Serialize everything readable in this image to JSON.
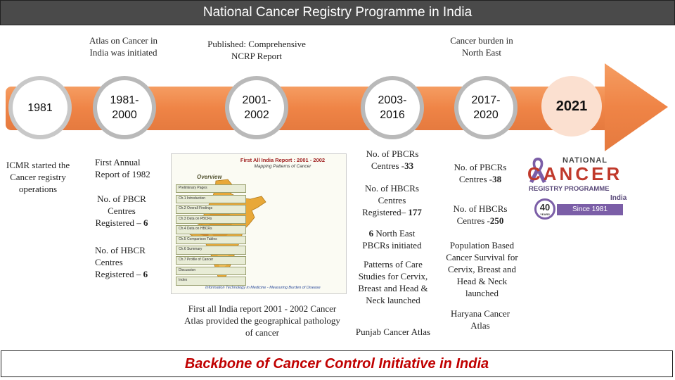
{
  "title": "National Cancer Registry Programme in India",
  "footer": "Backbone of Cancer Control Initiative in India",
  "milestones": [
    {
      "year": "1981",
      "bottom": "ICMR started the Cancer registry operations"
    },
    {
      "year": "1981-\n2000",
      "top": "Atlas on Cancer in India was initiated",
      "bottom1": "First Annual Report of 1982",
      "bottom2": "No. of PBCR Centres Registered",
      "bottom2_value": "6",
      "bottom3": "No. of HBCR Centres Registered",
      "bottom3_value": "6"
    },
    {
      "year": "2001-\n2002",
      "top": "Published: Comprehensive NCRP Report",
      "bottom": "First all India report 2001 - 2002 Cancer Atlas provided the geographical pathology of cancer"
    },
    {
      "year": "2003-\n2016",
      "b1": "No. of PBCRs Centres -",
      "b1_value": "33",
      "b2": "No. of HBCRs Centres Registered–",
      "b2_value": "177",
      "b3_value": "6",
      "b3": "North East PBCRs initiated",
      "b4": "Patterns of Care Studies for Cervix, Breast and Head & Neck launched",
      "b5": "Punjab Cancer Atlas"
    },
    {
      "year": "2017-\n2020",
      "top": "Cancer burden in North East",
      "b1": "No. of PBCRs Centres -",
      "b1_value": "38",
      "b2": "No. of HBCRs Centres -",
      "b2_value": "250",
      "b3": "Population Based Cancer Survival for Cervix, Breast and Head & Neck launched",
      "b4": "Haryana Cancer Atlas"
    },
    {
      "year": "2021"
    }
  ],
  "report": {
    "header": "First All India Report : 2001 - 2002",
    "subheader": "Mapping Patterns of Cancer",
    "overview": "Overview",
    "items": [
      "Preliminary Pages",
      "Ch.1 Introduction",
      "Ch.2 Overall Findings",
      "Ch.3 Data on PBCRs",
      "Ch.4 Data on HBCRs",
      "Ch.5 Comparison Tables",
      "Ch.6 Summary",
      "Ch.7 Profile of Cancer",
      "Discussion",
      "Index"
    ],
    "caption": "Information Technology in Medicine - Measuring Burden of Disease"
  },
  "logo": {
    "line1": "NATIONAL",
    "line2": "CANCER",
    "line3": "REGISTRY PROGRAMME",
    "line4": "India",
    "badge": "40",
    "badge_sub": "YEARS",
    "since": "Since 1981"
  },
  "colors": {
    "arrow": "#ef8a4e",
    "arrow_head": "#f28c50",
    "footer_text": "#c00000",
    "logo_purple": "#7b5ea7",
    "logo_red": "#c0392b"
  }
}
